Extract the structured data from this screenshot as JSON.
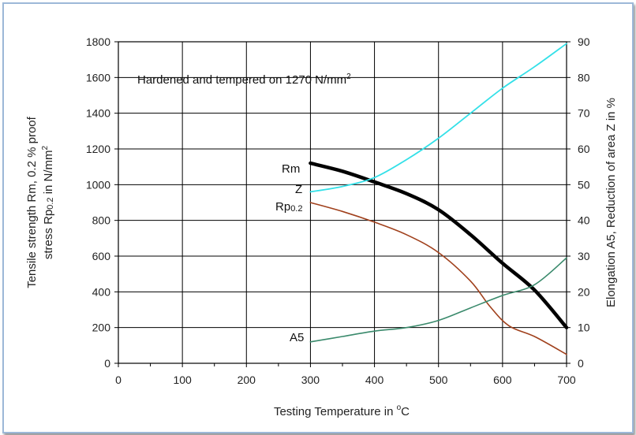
{
  "chart_data": {
    "type": "line",
    "annotation": {
      "main": "Hardened and tempered on 1270 N/mm",
      "sup": "2"
    },
    "xlabel": {
      "main": "Testing Temperature in ",
      "sup": "o",
      "tail": "C"
    },
    "ylabel_left": {
      "line1": "Tensile strength Rm, 0.2 % proof",
      "line2_a": "stress Rp",
      "line2_sub": "0.2",
      "line2_b": " in N/mm",
      "line2_sup": "2"
    },
    "ylabel_right": "Elongation A5, Reduction of area Z in %",
    "xlim": [
      0,
      700
    ],
    "ylim_left": [
      0,
      1800
    ],
    "ylim_right": [
      0,
      90
    ],
    "x_ticks": [
      "0",
      "100",
      "200",
      "300",
      "400",
      "500",
      "600",
      "700"
    ],
    "y_left_ticks": [
      "0",
      "200",
      "400",
      "600",
      "800",
      "1000",
      "1200",
      "1400",
      "1600",
      "1800"
    ],
    "y_right_ticks": [
      "0",
      "10",
      "20",
      "30",
      "40",
      "50",
      "60",
      "70",
      "80",
      "90"
    ],
    "grid": true,
    "series": [
      {
        "name": "Rm",
        "axis": "left",
        "color": "#000000",
        "points": [
          [
            300,
            1120
          ],
          [
            350,
            1075
          ],
          [
            400,
            1015
          ],
          [
            450,
            950
          ],
          [
            500,
            860
          ],
          [
            550,
            720
          ],
          [
            600,
            560
          ],
          [
            650,
            410
          ],
          [
            700,
            200
          ]
        ]
      },
      {
        "name": "Rp0.2",
        "label_main": "Rp",
        "label_sub": "0.2",
        "axis": "left",
        "color": "#a0401c",
        "points": [
          [
            300,
            900
          ],
          [
            350,
            850
          ],
          [
            400,
            790
          ],
          [
            450,
            720
          ],
          [
            500,
            620
          ],
          [
            550,
            460
          ],
          [
            580,
            320
          ],
          [
            610,
            210
          ],
          [
            650,
            150
          ],
          [
            700,
            50
          ]
        ]
      },
      {
        "name": "Z",
        "axis": "right",
        "color": "#33e0e8",
        "points": [
          [
            300,
            48
          ],
          [
            350,
            49.5
          ],
          [
            400,
            52
          ],
          [
            450,
            57
          ],
          [
            500,
            63
          ],
          [
            550,
            70
          ],
          [
            600,
            77
          ],
          [
            650,
            83
          ],
          [
            700,
            89.5
          ]
        ]
      },
      {
        "name": "A5",
        "axis": "right",
        "color": "#3a8a6c",
        "points": [
          [
            300,
            6
          ],
          [
            350,
            7.5
          ],
          [
            400,
            9
          ],
          [
            450,
            10
          ],
          [
            500,
            12
          ],
          [
            550,
            15.5
          ],
          [
            600,
            19
          ],
          [
            650,
            22
          ],
          [
            700,
            29.5
          ]
        ]
      }
    ]
  }
}
